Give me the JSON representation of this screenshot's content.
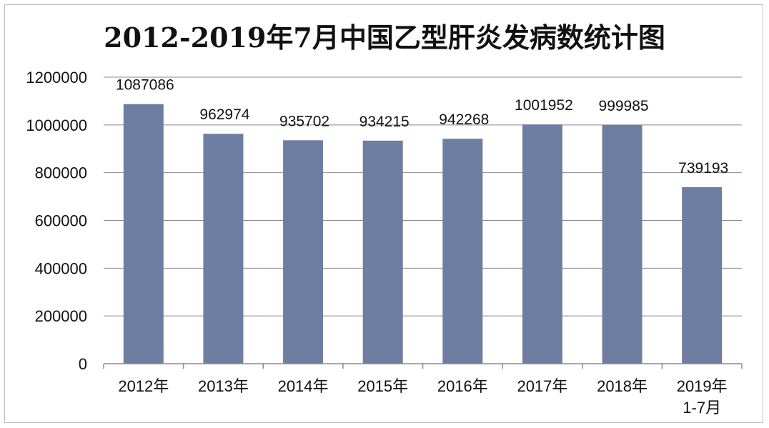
{
  "chart_data": {
    "type": "bar",
    "title": "2012-2019年7月中国乙型肝炎发病数统计图",
    "categories": [
      "2012年",
      "2013年",
      "2014年",
      "2015年",
      "2016年",
      "2017年",
      "2018年",
      "2019年\n1-7月"
    ],
    "values": [
      1087086,
      962974,
      935702,
      934215,
      942268,
      1001952,
      999985,
      739193
    ],
    "ylim": [
      0,
      1200000
    ],
    "yticks": [
      0,
      200000,
      400000,
      600000,
      800000,
      1000000,
      1200000
    ],
    "grid": true,
    "legend": "none",
    "bar_color": "#6e7ea2"
  }
}
